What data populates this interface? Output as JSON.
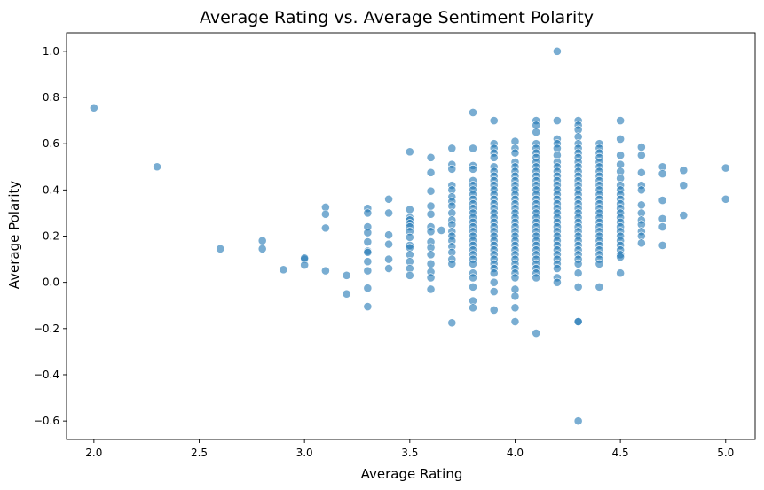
{
  "chart_data": {
    "type": "scatter",
    "title": "Average Rating vs. Average Sentiment Polarity",
    "xlabel": "Average Rating",
    "ylabel": "Average Polarity",
    "xlim": [
      1.87,
      5.14
    ],
    "ylim": [
      -0.68,
      1.08
    ],
    "xticks": [
      2.0,
      2.5,
      3.0,
      3.5,
      4.0,
      4.5,
      5.0
    ],
    "xtick_labels": [
      "2.0",
      "2.5",
      "3.0",
      "3.5",
      "4.0",
      "4.5",
      "5.0"
    ],
    "yticks": [
      -0.6,
      -0.4,
      -0.2,
      0.0,
      0.2,
      0.4,
      0.6,
      0.8,
      1.0
    ],
    "ytick_labels": [
      "−0.6",
      "−0.4",
      "−0.2",
      "0.0",
      "0.2",
      "0.4",
      "0.6",
      "0.8",
      "1.0"
    ],
    "grid": false,
    "marker_color": "#1f77b4",
    "marker_alpha": 0.6,
    "points": [
      [
        2.0,
        0.755
      ],
      [
        2.3,
        0.5
      ],
      [
        2.6,
        0.145
      ],
      [
        2.8,
        0.18
      ],
      [
        2.8,
        0.145
      ],
      [
        2.9,
        0.055
      ],
      [
        3.0,
        0.1
      ],
      [
        3.0,
        0.075
      ],
      [
        3.0,
        0.105
      ],
      [
        3.1,
        0.325
      ],
      [
        3.1,
        0.295
      ],
      [
        3.1,
        0.235
      ],
      [
        3.1,
        0.05
      ],
      [
        3.2,
        0.03
      ],
      [
        3.2,
        -0.05
      ],
      [
        3.3,
        0.32
      ],
      [
        3.3,
        0.3
      ],
      [
        3.3,
        0.24
      ],
      [
        3.3,
        0.215
      ],
      [
        3.3,
        0.175
      ],
      [
        3.3,
        0.135
      ],
      [
        3.3,
        0.13
      ],
      [
        3.3,
        0.09
      ],
      [
        3.3,
        0.05
      ],
      [
        3.3,
        -0.025
      ],
      [
        3.3,
        -0.105
      ],
      [
        3.4,
        0.36
      ],
      [
        3.4,
        0.3
      ],
      [
        3.4,
        0.205
      ],
      [
        3.4,
        0.165
      ],
      [
        3.4,
        0.1
      ],
      [
        3.4,
        0.06
      ],
      [
        3.5,
        0.565
      ],
      [
        3.5,
        0.315
      ],
      [
        3.5,
        0.28
      ],
      [
        3.5,
        0.27
      ],
      [
        3.5,
        0.255
      ],
      [
        3.5,
        0.24
      ],
      [
        3.5,
        0.22
      ],
      [
        3.5,
        0.195
      ],
      [
        3.5,
        0.16
      ],
      [
        3.5,
        0.15
      ],
      [
        3.5,
        0.12
      ],
      [
        3.5,
        0.09
      ],
      [
        3.5,
        0.06
      ],
      [
        3.5,
        0.03
      ],
      [
        3.6,
        0.54
      ],
      [
        3.6,
        0.475
      ],
      [
        3.6,
        0.395
      ],
      [
        3.6,
        0.33
      ],
      [
        3.6,
        0.295
      ],
      [
        3.6,
        0.24
      ],
      [
        3.6,
        0.22
      ],
      [
        3.6,
        0.175
      ],
      [
        3.6,
        0.15
      ],
      [
        3.6,
        0.12
      ],
      [
        3.6,
        0.08
      ],
      [
        3.6,
        0.045
      ],
      [
        3.6,
        0.02
      ],
      [
        3.6,
        -0.03
      ],
      [
        3.65,
        0.225
      ],
      [
        3.7,
        0.58
      ],
      [
        3.7,
        0.51
      ],
      [
        3.7,
        0.49
      ],
      [
        3.7,
        0.42
      ],
      [
        3.7,
        0.4
      ],
      [
        3.7,
        0.37
      ],
      [
        3.7,
        0.35
      ],
      [
        3.7,
        0.33
      ],
      [
        3.7,
        0.3
      ],
      [
        3.7,
        0.27
      ],
      [
        3.7,
        0.25
      ],
      [
        3.7,
        0.22
      ],
      [
        3.7,
        0.2
      ],
      [
        3.7,
        0.18
      ],
      [
        3.7,
        0.155
      ],
      [
        3.7,
        0.13
      ],
      [
        3.7,
        0.1
      ],
      [
        3.7,
        0.08
      ],
      [
        3.7,
        -0.175
      ],
      [
        3.8,
        0.735
      ],
      [
        3.8,
        0.58
      ],
      [
        3.8,
        0.505
      ],
      [
        3.8,
        0.49
      ],
      [
        3.8,
        0.44
      ],
      [
        3.8,
        0.42
      ],
      [
        3.8,
        0.4
      ],
      [
        3.8,
        0.38
      ],
      [
        3.8,
        0.36
      ],
      [
        3.8,
        0.34
      ],
      [
        3.8,
        0.32
      ],
      [
        3.8,
        0.3
      ],
      [
        3.8,
        0.28
      ],
      [
        3.8,
        0.26
      ],
      [
        3.8,
        0.24
      ],
      [
        3.8,
        0.22
      ],
      [
        3.8,
        0.2
      ],
      [
        3.8,
        0.18
      ],
      [
        3.8,
        0.16
      ],
      [
        3.8,
        0.14
      ],
      [
        3.8,
        0.12
      ],
      [
        3.8,
        0.1
      ],
      [
        3.8,
        0.08
      ],
      [
        3.8,
        0.04
      ],
      [
        3.8,
        0.02
      ],
      [
        3.8,
        -0.02
      ],
      [
        3.8,
        -0.08
      ],
      [
        3.8,
        -0.11
      ],
      [
        3.9,
        0.7
      ],
      [
        3.9,
        0.6
      ],
      [
        3.9,
        0.58
      ],
      [
        3.9,
        0.56
      ],
      [
        3.9,
        0.54
      ],
      [
        3.9,
        0.5
      ],
      [
        3.9,
        0.48
      ],
      [
        3.9,
        0.46
      ],
      [
        3.9,
        0.44
      ],
      [
        3.9,
        0.42
      ],
      [
        3.9,
        0.4
      ],
      [
        3.9,
        0.38
      ],
      [
        3.9,
        0.36
      ],
      [
        3.9,
        0.34
      ],
      [
        3.9,
        0.32
      ],
      [
        3.9,
        0.3
      ],
      [
        3.9,
        0.28
      ],
      [
        3.9,
        0.26
      ],
      [
        3.9,
        0.24
      ],
      [
        3.9,
        0.22
      ],
      [
        3.9,
        0.2
      ],
      [
        3.9,
        0.18
      ],
      [
        3.9,
        0.16
      ],
      [
        3.9,
        0.14
      ],
      [
        3.9,
        0.12
      ],
      [
        3.9,
        0.1
      ],
      [
        3.9,
        0.08
      ],
      [
        3.9,
        0.06
      ],
      [
        3.9,
        0.04
      ],
      [
        3.9,
        0.0
      ],
      [
        3.9,
        -0.04
      ],
      [
        3.9,
        -0.12
      ],
      [
        4.0,
        0.61
      ],
      [
        4.0,
        0.58
      ],
      [
        4.0,
        0.56
      ],
      [
        4.0,
        0.52
      ],
      [
        4.0,
        0.5
      ],
      [
        4.0,
        0.48
      ],
      [
        4.0,
        0.46
      ],
      [
        4.0,
        0.44
      ],
      [
        4.0,
        0.42
      ],
      [
        4.0,
        0.4
      ],
      [
        4.0,
        0.38
      ],
      [
        4.0,
        0.36
      ],
      [
        4.0,
        0.34
      ],
      [
        4.0,
        0.32
      ],
      [
        4.0,
        0.3
      ],
      [
        4.0,
        0.28
      ],
      [
        4.0,
        0.26
      ],
      [
        4.0,
        0.24
      ],
      [
        4.0,
        0.22
      ],
      [
        4.0,
        0.2
      ],
      [
        4.0,
        0.18
      ],
      [
        4.0,
        0.16
      ],
      [
        4.0,
        0.14
      ],
      [
        4.0,
        0.12
      ],
      [
        4.0,
        0.1
      ],
      [
        4.0,
        0.08
      ],
      [
        4.0,
        0.06
      ],
      [
        4.0,
        0.04
      ],
      [
        4.0,
        0.02
      ],
      [
        4.0,
        -0.03
      ],
      [
        4.0,
        -0.06
      ],
      [
        4.0,
        -0.11
      ],
      [
        4.0,
        -0.17
      ],
      [
        4.1,
        0.7
      ],
      [
        4.1,
        0.68
      ],
      [
        4.1,
        0.65
      ],
      [
        4.1,
        0.6
      ],
      [
        4.1,
        0.58
      ],
      [
        4.1,
        0.56
      ],
      [
        4.1,
        0.54
      ],
      [
        4.1,
        0.52
      ],
      [
        4.1,
        0.5
      ],
      [
        4.1,
        0.48
      ],
      [
        4.1,
        0.46
      ],
      [
        4.1,
        0.44
      ],
      [
        4.1,
        0.42
      ],
      [
        4.1,
        0.4
      ],
      [
        4.1,
        0.38
      ],
      [
        4.1,
        0.36
      ],
      [
        4.1,
        0.34
      ],
      [
        4.1,
        0.32
      ],
      [
        4.1,
        0.3
      ],
      [
        4.1,
        0.28
      ],
      [
        4.1,
        0.26
      ],
      [
        4.1,
        0.24
      ],
      [
        4.1,
        0.22
      ],
      [
        4.1,
        0.2
      ],
      [
        4.1,
        0.18
      ],
      [
        4.1,
        0.16
      ],
      [
        4.1,
        0.14
      ],
      [
        4.1,
        0.12
      ],
      [
        4.1,
        0.1
      ],
      [
        4.1,
        0.08
      ],
      [
        4.1,
        0.06
      ],
      [
        4.1,
        0.04
      ],
      [
        4.1,
        0.02
      ],
      [
        4.1,
        -0.22
      ],
      [
        4.2,
        1.0
      ],
      [
        4.2,
        0.7
      ],
      [
        4.2,
        0.62
      ],
      [
        4.2,
        0.6
      ],
      [
        4.2,
        0.58
      ],
      [
        4.2,
        0.55
      ],
      [
        4.2,
        0.52
      ],
      [
        4.2,
        0.5
      ],
      [
        4.2,
        0.48
      ],
      [
        4.2,
        0.46
      ],
      [
        4.2,
        0.44
      ],
      [
        4.2,
        0.42
      ],
      [
        4.2,
        0.4
      ],
      [
        4.2,
        0.38
      ],
      [
        4.2,
        0.36
      ],
      [
        4.2,
        0.34
      ],
      [
        4.2,
        0.32
      ],
      [
        4.2,
        0.3
      ],
      [
        4.2,
        0.28
      ],
      [
        4.2,
        0.26
      ],
      [
        4.2,
        0.24
      ],
      [
        4.2,
        0.22
      ],
      [
        4.2,
        0.2
      ],
      [
        4.2,
        0.18
      ],
      [
        4.2,
        0.16
      ],
      [
        4.2,
        0.14
      ],
      [
        4.2,
        0.12
      ],
      [
        4.2,
        0.1
      ],
      [
        4.2,
        0.08
      ],
      [
        4.2,
        0.06
      ],
      [
        4.2,
        0.02
      ],
      [
        4.2,
        0.0
      ],
      [
        4.3,
        0.7
      ],
      [
        4.3,
        0.68
      ],
      [
        4.3,
        0.66
      ],
      [
        4.3,
        0.63
      ],
      [
        4.3,
        0.6
      ],
      [
        4.3,
        0.58
      ],
      [
        4.3,
        0.56
      ],
      [
        4.3,
        0.54
      ],
      [
        4.3,
        0.52
      ],
      [
        4.3,
        0.5
      ],
      [
        4.3,
        0.48
      ],
      [
        4.3,
        0.46
      ],
      [
        4.3,
        0.44
      ],
      [
        4.3,
        0.42
      ],
      [
        4.3,
        0.4
      ],
      [
        4.3,
        0.38
      ],
      [
        4.3,
        0.36
      ],
      [
        4.3,
        0.34
      ],
      [
        4.3,
        0.32
      ],
      [
        4.3,
        0.3
      ],
      [
        4.3,
        0.28
      ],
      [
        4.3,
        0.26
      ],
      [
        4.3,
        0.24
      ],
      [
        4.3,
        0.22
      ],
      [
        4.3,
        0.2
      ],
      [
        4.3,
        0.18
      ],
      [
        4.3,
        0.16
      ],
      [
        4.3,
        0.14
      ],
      [
        4.3,
        0.12
      ],
      [
        4.3,
        0.1
      ],
      [
        4.3,
        0.08
      ],
      [
        4.3,
        0.04
      ],
      [
        4.3,
        -0.02
      ],
      [
        4.3,
        -0.17
      ],
      [
        4.3,
        -0.17
      ],
      [
        4.3,
        -0.6
      ],
      [
        4.4,
        0.6
      ],
      [
        4.4,
        0.58
      ],
      [
        4.4,
        0.56
      ],
      [
        4.4,
        0.54
      ],
      [
        4.4,
        0.52
      ],
      [
        4.4,
        0.5
      ],
      [
        4.4,
        0.48
      ],
      [
        4.4,
        0.46
      ],
      [
        4.4,
        0.44
      ],
      [
        4.4,
        0.42
      ],
      [
        4.4,
        0.4
      ],
      [
        4.4,
        0.38
      ],
      [
        4.4,
        0.36
      ],
      [
        4.4,
        0.34
      ],
      [
        4.4,
        0.32
      ],
      [
        4.4,
        0.3
      ],
      [
        4.4,
        0.28
      ],
      [
        4.4,
        0.26
      ],
      [
        4.4,
        0.24
      ],
      [
        4.4,
        0.22
      ],
      [
        4.4,
        0.2
      ],
      [
        4.4,
        0.18
      ],
      [
        4.4,
        0.16
      ],
      [
        4.4,
        0.14
      ],
      [
        4.4,
        0.12
      ],
      [
        4.4,
        0.1
      ],
      [
        4.4,
        0.08
      ],
      [
        4.4,
        -0.02
      ],
      [
        4.5,
        0.7
      ],
      [
        4.5,
        0.62
      ],
      [
        4.5,
        0.55
      ],
      [
        4.5,
        0.51
      ],
      [
        4.5,
        0.48
      ],
      [
        4.5,
        0.45
      ],
      [
        4.5,
        0.42
      ],
      [
        4.5,
        0.4
      ],
      [
        4.5,
        0.38
      ],
      [
        4.5,
        0.36
      ],
      [
        4.5,
        0.34
      ],
      [
        4.5,
        0.32
      ],
      [
        4.5,
        0.3
      ],
      [
        4.5,
        0.28
      ],
      [
        4.5,
        0.26
      ],
      [
        4.5,
        0.24
      ],
      [
        4.5,
        0.22
      ],
      [
        4.5,
        0.2
      ],
      [
        4.5,
        0.18
      ],
      [
        4.5,
        0.16
      ],
      [
        4.5,
        0.14
      ],
      [
        4.5,
        0.12
      ],
      [
        4.5,
        0.11
      ],
      [
        4.5,
        0.04
      ],
      [
        4.6,
        0.585
      ],
      [
        4.6,
        0.55
      ],
      [
        4.6,
        0.475
      ],
      [
        4.6,
        0.42
      ],
      [
        4.6,
        0.4
      ],
      [
        4.6,
        0.335
      ],
      [
        4.6,
        0.3
      ],
      [
        4.6,
        0.27
      ],
      [
        4.6,
        0.25
      ],
      [
        4.6,
        0.22
      ],
      [
        4.6,
        0.2
      ],
      [
        4.6,
        0.17
      ],
      [
        4.7,
        0.5
      ],
      [
        4.7,
        0.47
      ],
      [
        4.7,
        0.355
      ],
      [
        4.7,
        0.275
      ],
      [
        4.7,
        0.24
      ],
      [
        4.7,
        0.16
      ],
      [
        4.8,
        0.485
      ],
      [
        4.8,
        0.42
      ],
      [
        4.8,
        0.29
      ],
      [
        5.0,
        0.495
      ],
      [
        5.0,
        0.36
      ]
    ]
  }
}
